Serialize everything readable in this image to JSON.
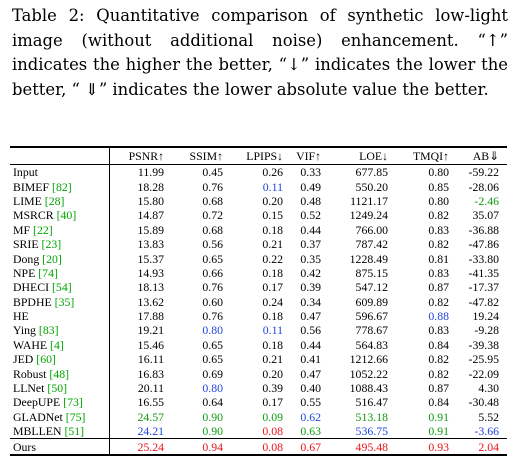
{
  "caption": "Table 2: Quantitative comparison of synthetic low-light image (without additional noise) enhancement. “↑” indicates the higher the better, “↓” indicates the lower the better, “ ⇓” indicates the lower absolute value the better.",
  "table": {
    "headers": [
      "",
      "PSNR↑",
      "SSIM↑",
      "LPIPS↓",
      "VIF↑",
      "LOE↓",
      "TMQI↑",
      "AB⇓"
    ],
    "rows": [
      {
        "method": "Input",
        "ref": "",
        "values": [
          "11.99",
          "0.45",
          "0.26",
          "0.33",
          "677.85",
          "0.80",
          "-59.22"
        ]
      },
      {
        "method": "BIMEF",
        "ref": "[82]",
        "values": [
          "18.28",
          "0.76",
          "0.11",
          "0.49",
          "550.20",
          "0.85",
          "-28.06"
        ]
      },
      {
        "method": "LIME",
        "ref": "[28]",
        "values": [
          "15.80",
          "0.68",
          "0.20",
          "0.48",
          "1121.17",
          "0.80",
          "-2.46"
        ]
      },
      {
        "method": "MSRCR",
        "ref": "[40]",
        "values": [
          "14.87",
          "0.72",
          "0.15",
          "0.52",
          "1249.24",
          "0.82",
          "35.07"
        ]
      },
      {
        "method": "MF",
        "ref": "[22]",
        "values": [
          "15.89",
          "0.68",
          "0.18",
          "0.44",
          "766.00",
          "0.83",
          "-36.88"
        ]
      },
      {
        "method": "SRIE",
        "ref": "[23]",
        "values": [
          "13.83",
          "0.56",
          "0.21",
          "0.37",
          "787.42",
          "0.82",
          "-47.86"
        ]
      },
      {
        "method": "Dong",
        "ref": "[20]",
        "values": [
          "15.37",
          "0.65",
          "0.22",
          "0.35",
          "1228.49",
          "0.81",
          "-33.80"
        ]
      },
      {
        "method": "NPE",
        "ref": "[74]",
        "values": [
          "14.93",
          "0.66",
          "0.18",
          "0.42",
          "875.15",
          "0.83",
          "-41.35"
        ]
      },
      {
        "method": "DHECI",
        "ref": "[54]",
        "values": [
          "18.13",
          "0.76",
          "0.17",
          "0.39",
          "547.12",
          "0.87",
          "-17.37"
        ]
      },
      {
        "method": "BPDHE",
        "ref": "[35]",
        "values": [
          "13.62",
          "0.60",
          "0.24",
          "0.34",
          "609.89",
          "0.82",
          "-47.82"
        ]
      },
      {
        "method": "HE",
        "ref": "",
        "values": [
          "17.88",
          "0.76",
          "0.18",
          "0.47",
          "596.67",
          "0.88",
          "19.24"
        ]
      },
      {
        "method": "Ying",
        "ref": "[83]",
        "values": [
          "19.21",
          "0.80",
          "0.11",
          "0.56",
          "778.67",
          "0.83",
          "-9.28"
        ]
      },
      {
        "method": "WAHE",
        "ref": "[4]",
        "values": [
          "15.46",
          "0.65",
          "0.18",
          "0.44",
          "564.83",
          "0.84",
          "-39.38"
        ]
      },
      {
        "method": "JED",
        "ref": "[60]",
        "values": [
          "16.11",
          "0.65",
          "0.21",
          "0.41",
          "1212.66",
          "0.82",
          "-25.95"
        ]
      },
      {
        "method": "Robust",
        "ref": "[48]",
        "values": [
          "16.83",
          "0.69",
          "0.20",
          "0.47",
          "1052.22",
          "0.82",
          "-22.09"
        ]
      },
      {
        "method": "LLNet",
        "ref": "[50]",
        "values": [
          "20.11",
          "0.80",
          "0.39",
          "0.40",
          "1088.43",
          "0.87",
          "4.30"
        ]
      },
      {
        "method": "DeepUPE",
        "ref": "[73]",
        "values": [
          "16.55",
          "0.64",
          "0.17",
          "0.55",
          "516.47",
          "0.84",
          "-30.48"
        ]
      },
      {
        "method": "GLADNet",
        "ref": "[75]",
        "values": [
          "24.57",
          "0.90",
          "0.09",
          "0.62",
          "513.18",
          "0.91",
          "5.52"
        ]
      },
      {
        "method": "MBLLEN",
        "ref": "[51]",
        "values": [
          "24.21",
          "0.90",
          "0.08",
          "0.63",
          "536.75",
          "0.91",
          "-3.66"
        ]
      },
      {
        "method": "Ours",
        "ref": "",
        "values": [
          "25.24",
          "0.94",
          "0.08",
          "0.67",
          "495.48",
          "0.93",
          "2.04"
        ]
      }
    ],
    "highlights": {
      "1": {
        "2": "blue"
      },
      "2": {
        "6": "green"
      },
      "10": {
        "5": "blue"
      },
      "11": {
        "1": "blue",
        "2": "blue"
      },
      "15": {
        "1": "blue"
      },
      "17": {
        "0": "green",
        "1": "green",
        "2": "green",
        "3": "blue",
        "4": "green",
        "5": "green"
      },
      "18": {
        "0": "blue",
        "1": "green",
        "2": "red",
        "3": "green",
        "4": "blue",
        "5": "green",
        "6": "blue"
      },
      "19": {
        "0": "red",
        "1": "red",
        "2": "red",
        "3": "red",
        "4": "red",
        "5": "red",
        "6": "red"
      }
    },
    "colors": {
      "red": "#e8141b",
      "green": "#119b11",
      "blue": "#1f46dc",
      "reference": "#00a400"
    }
  }
}
